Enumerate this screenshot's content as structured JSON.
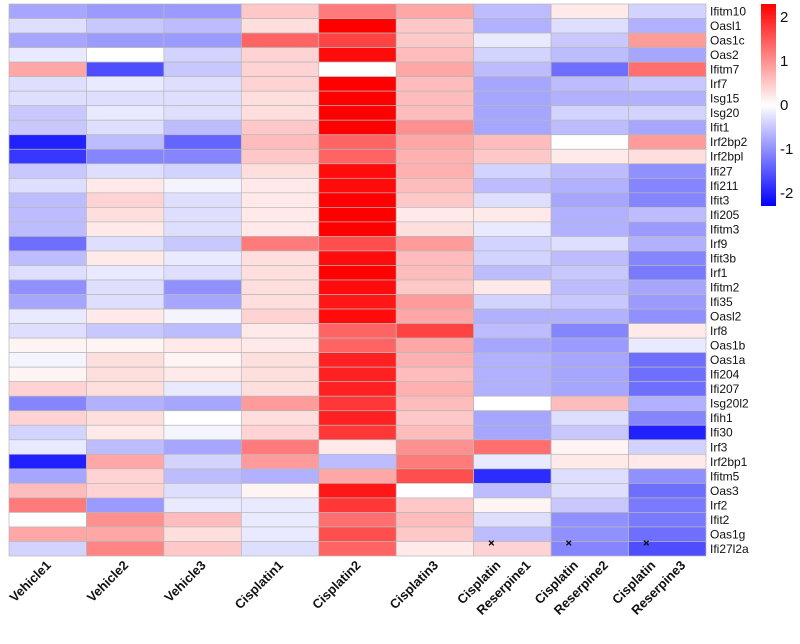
{
  "chart_data": {
    "type": "heatmap",
    "title": "",
    "columns": [
      "Vehicle1",
      "Vehicle2",
      "Vehicle3",
      "Cisplatin1",
      "Cisplatin2",
      "Cisplatin3",
      "Cisplatin + Reserpine1",
      "Cisplatin + Reserpine2",
      "Cisplatin + Reserpine3"
    ],
    "column_label_lines": [
      [
        "Vehicle1"
      ],
      [
        "Vehicle2"
      ],
      [
        "Vehicle3"
      ],
      [
        "Cisplatin1"
      ],
      [
        "Cisplatin2"
      ],
      [
        "Cisplatin3"
      ],
      [
        "Cisplatin",
        "+",
        "Reserpine1"
      ],
      [
        "Cisplatin",
        "+",
        "Reserpine2"
      ],
      [
        "Cisplatin",
        "+",
        "Reserpine3"
      ]
    ],
    "rows": [
      "Ifitm10",
      "Oasl1",
      "Oas1c",
      "Oas2",
      "Ifitm7",
      "Irf7",
      "Isg15",
      "Isg20",
      "Ifit1",
      "Irf2bp2",
      "Irf2bpl",
      "Ifi27",
      "Ifi211",
      "Ifit3",
      "Ifi205",
      "Ifitm3",
      "Irf9",
      "Ifit3b",
      "Irf1",
      "Ifitm2",
      "Ifi35",
      "Oasl2",
      "Irf8",
      "Oas1b",
      "Oas1a",
      "Ifi204",
      "Ifi207",
      "Isg20l2",
      "Ifih1",
      "Ifi30",
      "Irf3",
      "Irf2bp1",
      "Ifitm5",
      "Oas3",
      "Irf2",
      "Ifit2",
      "Oas1g",
      "Ifi27l2a"
    ],
    "values": [
      [
        -0.8,
        -0.9,
        -0.9,
        0.5,
        1.2,
        0.8,
        -0.6,
        0.2,
        -0.4
      ],
      [
        -0.3,
        -0.5,
        -0.6,
        0.3,
        2.3,
        0.5,
        -0.7,
        -0.3,
        -0.7
      ],
      [
        -0.8,
        -0.9,
        -0.9,
        1.4,
        1.7,
        0.5,
        -0.2,
        -0.5,
        0.9
      ],
      [
        -0.2,
        0.0,
        -0.4,
        0.4,
        2.2,
        0.6,
        -0.4,
        -0.6,
        -0.8
      ],
      [
        0.8,
        -1.6,
        -0.5,
        0.4,
        0.0,
        0.8,
        -0.6,
        -1.3,
        1.3
      ],
      [
        -0.3,
        -0.2,
        -0.3,
        0.4,
        2.3,
        0.6,
        -0.8,
        -0.6,
        -0.5
      ],
      [
        -0.3,
        -0.3,
        -0.3,
        0.3,
        2.3,
        0.6,
        -0.8,
        -0.7,
        -0.7
      ],
      [
        -0.5,
        -0.2,
        -0.3,
        0.3,
        2.3,
        0.6,
        -0.8,
        -0.4,
        -0.4
      ],
      [
        -0.5,
        -0.3,
        -0.6,
        0.5,
        2.3,
        1.0,
        -0.8,
        -0.6,
        -0.8
      ],
      [
        -2.0,
        -0.6,
        -1.4,
        0.6,
        1.4,
        0.8,
        0.6,
        0.0,
        0.9
      ],
      [
        -1.8,
        -1.1,
        -1.1,
        0.5,
        1.4,
        0.7,
        0.5,
        0.2,
        0.3
      ],
      [
        -0.5,
        -0.3,
        -0.4,
        0.3,
        2.2,
        0.7,
        -0.4,
        -0.6,
        -1.0
      ],
      [
        -0.3,
        0.2,
        -0.1,
        0.2,
        2.2,
        0.6,
        -0.6,
        -0.7,
        -1.1
      ],
      [
        -0.6,
        0.4,
        -0.3,
        0.2,
        2.3,
        0.5,
        -0.3,
        -0.8,
        -1.1
      ],
      [
        -0.6,
        0.3,
        -0.3,
        0.2,
        2.3,
        0.2,
        0.2,
        -0.7,
        -0.6
      ],
      [
        -0.6,
        0.2,
        -0.3,
        0.2,
        2.3,
        0.3,
        -0.2,
        -0.7,
        -0.9
      ],
      [
        -1.3,
        -0.3,
        -0.5,
        1.2,
        1.6,
        0.9,
        -0.4,
        -0.3,
        -0.7
      ],
      [
        -0.6,
        0.2,
        -0.2,
        0.3,
        2.2,
        0.6,
        -0.4,
        -0.6,
        -1.1
      ],
      [
        -0.3,
        -0.2,
        -0.3,
        0.3,
        2.3,
        0.6,
        -0.6,
        -0.5,
        -1.2
      ],
      [
        -1.0,
        -0.3,
        -1.0,
        0.3,
        2.2,
        0.5,
        0.2,
        -0.6,
        -0.8
      ],
      [
        -0.8,
        -0.3,
        -0.8,
        0.3,
        2.1,
        0.9,
        -0.4,
        -0.5,
        -0.9
      ],
      [
        -0.2,
        0.2,
        -0.1,
        0.4,
        2.2,
        0.8,
        -0.7,
        -0.7,
        -1.0
      ],
      [
        -0.3,
        -0.5,
        -0.6,
        0.2,
        1.4,
        1.7,
        -0.6,
        -1.1,
        0.2
      ],
      [
        0.1,
        0.1,
        0.2,
        0.2,
        1.4,
        0.8,
        -0.8,
        -0.9,
        -0.2
      ],
      [
        -0.1,
        0.3,
        0.1,
        0.3,
        2.0,
        0.7,
        -0.7,
        -0.8,
        -1.3
      ],
      [
        0.1,
        0.3,
        0.2,
        0.3,
        2.0,
        0.6,
        -0.7,
        -0.8,
        -1.3
      ],
      [
        0.4,
        0.3,
        -0.2,
        0.3,
        2.0,
        0.7,
        -0.7,
        -0.8,
        -1.3
      ],
      [
        -1.1,
        -0.7,
        -0.8,
        0.9,
        1.8,
        0.6,
        0.0,
        0.6,
        -0.7
      ],
      [
        0.4,
        0.3,
        0.0,
        0.3,
        2.0,
        0.5,
        -0.8,
        -0.3,
        -1.1
      ],
      [
        -0.4,
        0.2,
        -0.1,
        0.4,
        1.8,
        0.6,
        -0.8,
        -0.5,
        -2.0
      ],
      [
        -0.2,
        -0.6,
        -0.8,
        1.2,
        0.2,
        1.0,
        1.3,
        0.1,
        -0.4
      ],
      [
        -2.0,
        0.8,
        -0.4,
        0.9,
        -0.6,
        1.2,
        -0.2,
        0.2,
        0.2
      ],
      [
        -0.8,
        0.4,
        -0.6,
        -0.7,
        0.8,
        1.6,
        -1.9,
        -0.3,
        -1.0
      ],
      [
        0.6,
        0.4,
        -0.3,
        0.1,
        2.1,
        0.0,
        -0.6,
        -0.3,
        -1.3
      ],
      [
        1.2,
        -0.9,
        -0.2,
        -0.2,
        1.8,
        0.5,
        0.1,
        -0.5,
        -1.2
      ],
      [
        0.0,
        1.0,
        0.6,
        -0.2,
        1.3,
        0.6,
        -0.3,
        -1.0,
        -1.2
      ],
      [
        0.8,
        0.8,
        0.3,
        -0.2,
        1.6,
        0.5,
        -0.6,
        -1.0,
        -1.3
      ],
      [
        -0.4,
        1.1,
        0.5,
        -0.3,
        1.4,
        0.2,
        0.4,
        -1.1,
        -1.6
      ]
    ],
    "color_scale": {
      "min": -2.3,
      "max": 2.3,
      "low_color": "#0000ff",
      "mid_color": "#ffffff",
      "high_color": "#ff0000",
      "ticks": [
        2,
        1,
        0,
        -1,
        -2
      ],
      "tick_labels": [
        "2",
        "1",
        "0",
        "-1",
        "-2"
      ]
    },
    "grid_color": "#b8b8b8"
  }
}
